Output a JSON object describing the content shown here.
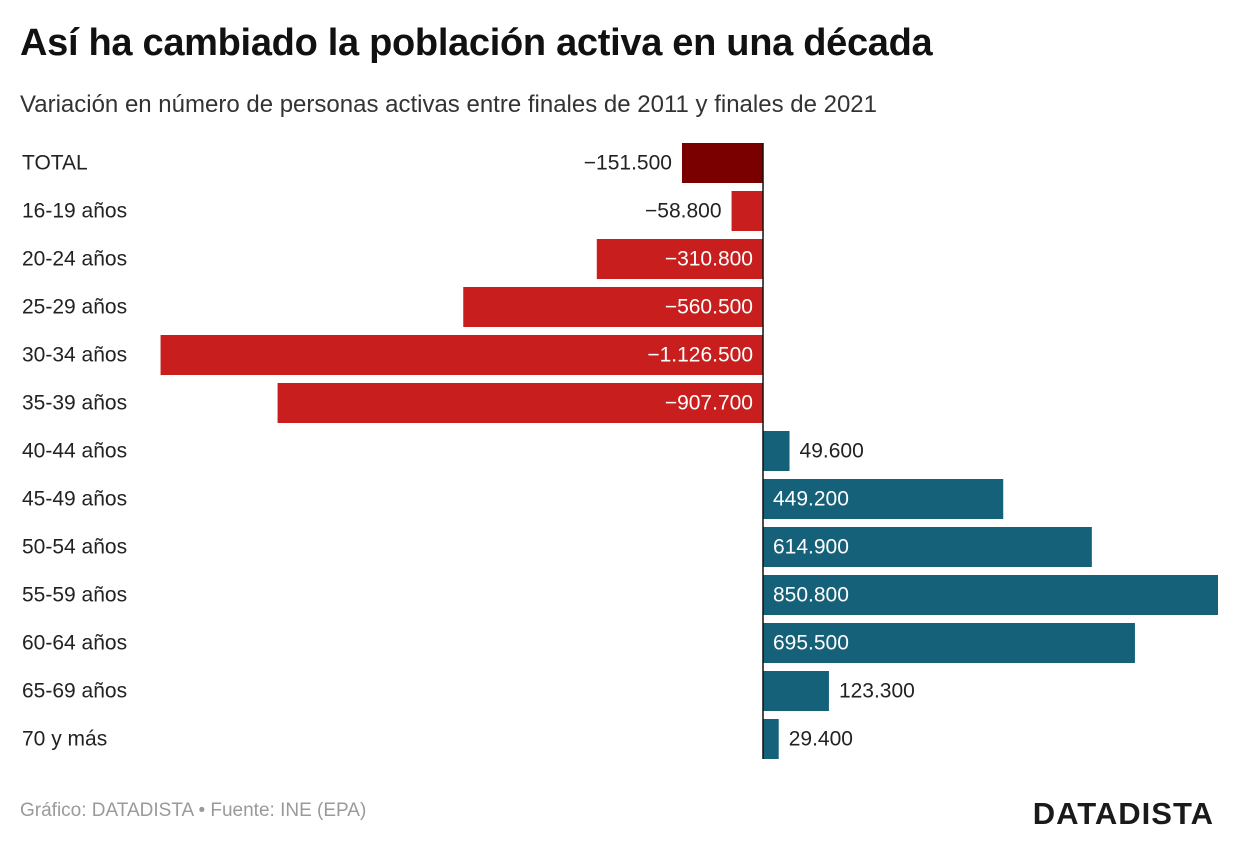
{
  "title": "Así ha cambiado la población activa en una década",
  "subtitle": "Variación en número de personas activas entre finales de 2011 y finales de 2021",
  "footer": {
    "credit": "Gráfico: DATADISTA",
    "separator": "•",
    "source": "Fuente: INE (EPA)"
  },
  "brand": "DATADISTA",
  "colors": {
    "total": "#7a0000",
    "negative": "#c91e1e",
    "positive": "#15617a"
  },
  "chart_data": {
    "type": "bar",
    "orientation": "horizontal",
    "categories": [
      "TOTAL",
      "16-19 años",
      "20-24 años",
      "25-29 años",
      "30-34 años",
      "35-39 años",
      "40-44 años",
      "45-49 años",
      "50-54 años",
      "55-59 años",
      "60-64 años",
      "65-69 años",
      "70 y más"
    ],
    "values": [
      -151500,
      -58800,
      -310800,
      -560500,
      -1126500,
      -907700,
      49600,
      449200,
      614900,
      850800,
      695500,
      123300,
      29400
    ],
    "value_labels": [
      "−151.500",
      "−58.800",
      "−310.800",
      "−560.500",
      "−1.126.500",
      "−907.700",
      "49.600",
      "449.200",
      "614.900",
      "850.800",
      "695.500",
      "123.300",
      "29.400"
    ],
    "xlim": [
      -1126500,
      850800
    ],
    "grid": false,
    "legend": "none"
  }
}
